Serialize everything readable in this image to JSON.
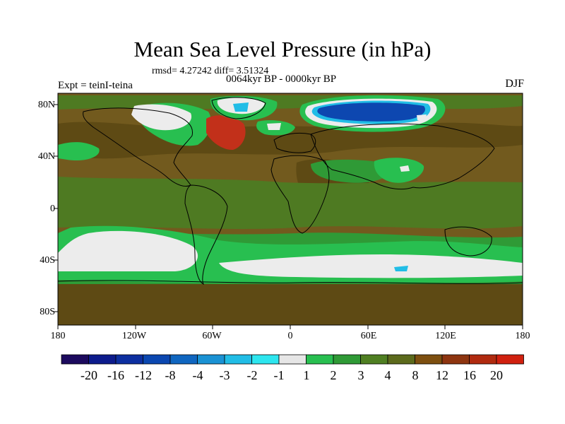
{
  "title": "Mean Sea Level Pressure (in hPa)",
  "stats": "rmsd= 4.27242 diff= 3.51324",
  "experiment": "Expt = teinI-teina",
  "period": "0064kyr BP - 0000kyr BP",
  "season": "DJF",
  "lat_labels": [
    "80N",
    "40N",
    "0",
    "40S",
    "80S"
  ],
  "lon_labels": [
    "180",
    "120W",
    "60W",
    "0",
    "60E",
    "120E",
    "180"
  ],
  "colorbar": {
    "labels": [
      "-20",
      "-16",
      "-12",
      "-8",
      "-4",
      "-3",
      "-2",
      "-1",
      "1",
      "2",
      "3",
      "4",
      "8",
      "12",
      "16",
      "20"
    ],
    "colors": [
      "#1c0a5e",
      "#0d1b8c",
      "#0d2fa0",
      "#0b47b0",
      "#1066c0",
      "#1a92d4",
      "#21bde6",
      "#2de6ef",
      "#e6e6e6",
      "#28bf50",
      "#2f9a36",
      "#4f7f22",
      "#5c6a1c",
      "#7d4f10",
      "#8e3510",
      "#b02a0f",
      "#d0200f"
    ]
  },
  "map_colors": {
    "base": "#725a1e",
    "dark": "#5e4a14",
    "olive": "#4e7a22",
    "green": "#2f9a36",
    "bright_green": "#28bf50",
    "white": "#ececec",
    "red": "#c2301a",
    "blue": "#0d47b0",
    "cyan": "#21bde6"
  }
}
